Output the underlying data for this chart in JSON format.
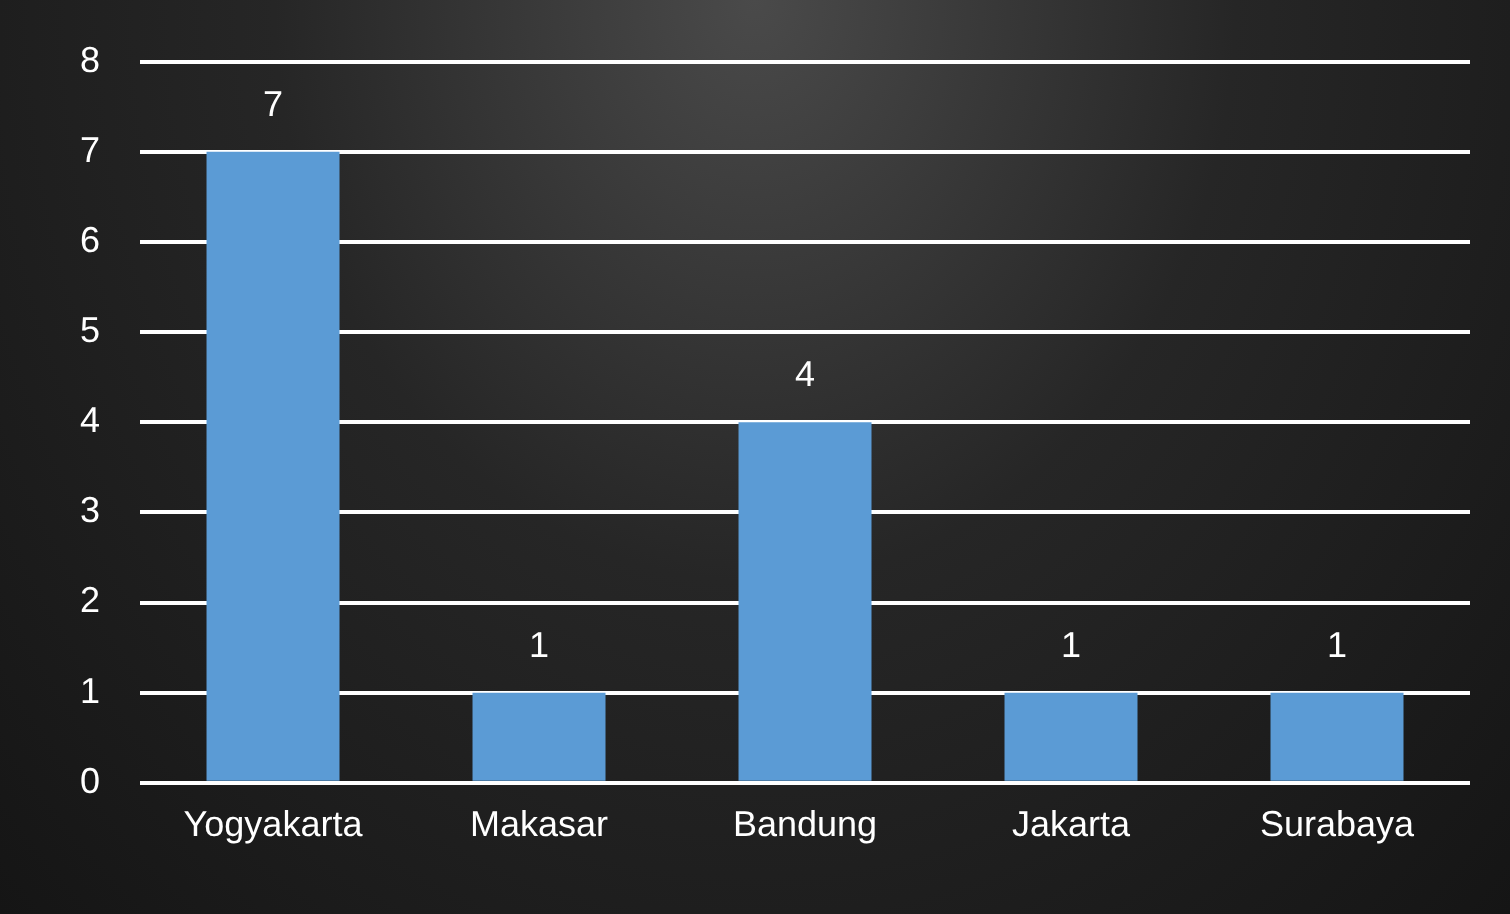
{
  "chart_data": {
    "type": "bar",
    "categories": [
      "Yogyakarta",
      "Makasar",
      "Bandung",
      "Jakarta",
      "Surabaya"
    ],
    "values": [
      7,
      1,
      4,
      1,
      1
    ],
    "color": "#5b9bd5",
    "ylim": [
      0,
      8
    ],
    "yticks": [
      0,
      1,
      2,
      3,
      4,
      5,
      6,
      7,
      8
    ],
    "grid": "y",
    "data_labels": true,
    "legend": false
  }
}
